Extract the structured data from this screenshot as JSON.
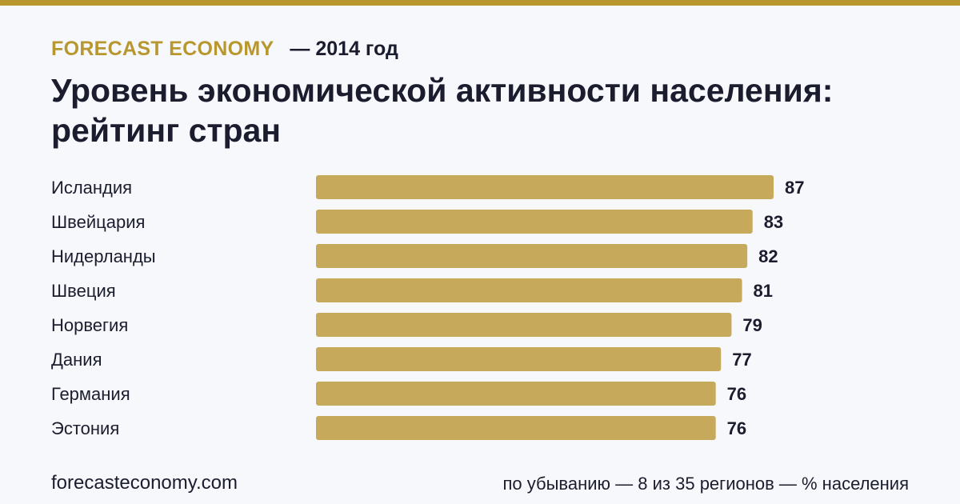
{
  "header": {
    "brand": "FORECAST ECONOMY",
    "year_label": "— 2014 год"
  },
  "title": "Уровень экономической активности населения: рейтинг стран",
  "footer": {
    "site": "forecasteconomy.com",
    "note": "по убыванию — 8 из 35 регионов — % населения"
  },
  "colors": {
    "accent": "#b8972f",
    "bar": "#c7a95b",
    "text": "#1b1d2e",
    "background": "#f7f8fc"
  },
  "chart_data": {
    "type": "bar",
    "orientation": "horizontal",
    "categories": [
      "Исландия",
      "Швейцария",
      "Нидерланды",
      "Швеция",
      "Норвегия",
      "Дания",
      "Германия",
      "Эстония"
    ],
    "values": [
      87,
      83,
      82,
      81,
      79,
      77,
      76,
      76
    ],
    "xlim": [
      0,
      87
    ],
    "grid": false,
    "legend": "none"
  }
}
